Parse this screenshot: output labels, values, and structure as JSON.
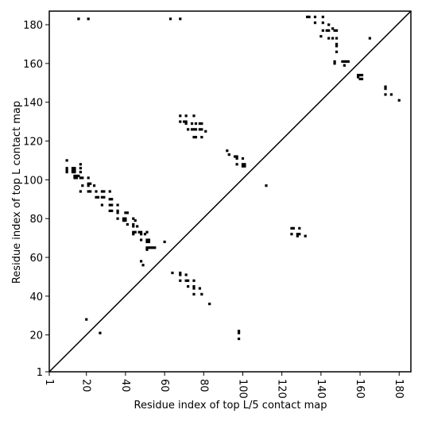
{
  "chart_data": {
    "type": "scatter",
    "title": "",
    "xlabel": "Residue index of top L/5 contact map",
    "ylabel": "Residue index of top L contact map",
    "xlim": [
      1,
      186
    ],
    "ylim": [
      1,
      187
    ],
    "xticks": [
      1,
      20,
      40,
      60,
      80,
      100,
      120,
      140,
      160,
      180
    ],
    "yticks": [
      1,
      20,
      40,
      60,
      80,
      100,
      120,
      140,
      160,
      180
    ],
    "grid": false,
    "diagonal": true,
    "marker_color": "#000000",
    "series": [
      {
        "values": [
          [
            16,
            183
          ],
          [
            21,
            183
          ],
          [
            63,
            183
          ],
          [
            68,
            183
          ],
          [
            133,
            184
          ],
          [
            134,
            184
          ],
          [
            137,
            184
          ],
          [
            141,
            184
          ],
          [
            137,
            181
          ],
          [
            141,
            181
          ],
          [
            144,
            180
          ],
          [
            146,
            178
          ],
          [
            148,
            177
          ],
          [
            141,
            177
          ],
          [
            143,
            177
          ],
          [
            144,
            177
          ],
          [
            147,
            177
          ],
          [
            140,
            174
          ],
          [
            144,
            173
          ],
          [
            146,
            173
          ],
          [
            148,
            173
          ],
          [
            148,
            170
          ],
          [
            148,
            169
          ],
          [
            148,
            166
          ],
          [
            165,
            173
          ],
          [
            147,
            161
          ],
          [
            147,
            160
          ],
          [
            151,
            161
          ],
          [
            152,
            161
          ],
          [
            153,
            161
          ],
          [
            154,
            161
          ],
          [
            152,
            159
          ],
          [
            159,
            154
          ],
          [
            160,
            154
          ],
          [
            161,
            154
          ],
          [
            159,
            153
          ],
          [
            160,
            152
          ],
          [
            161,
            152
          ],
          [
            173,
            148
          ],
          [
            173,
            147
          ],
          [
            173,
            144
          ],
          [
            176,
            144
          ],
          [
            180,
            141
          ],
          [
            68,
            133
          ],
          [
            71,
            133
          ],
          [
            75,
            133
          ],
          [
            68,
            130
          ],
          [
            70,
            130
          ],
          [
            71,
            130
          ],
          [
            71,
            129
          ],
          [
            74,
            129
          ],
          [
            76,
            129
          ],
          [
            78,
            129
          ],
          [
            79,
            129
          ],
          [
            72,
            126
          ],
          [
            74,
            126
          ],
          [
            75,
            126
          ],
          [
            76,
            126
          ],
          [
            78,
            126
          ],
          [
            79,
            126
          ],
          [
            81,
            125
          ],
          [
            75,
            122
          ],
          [
            76,
            122
          ],
          [
            79,
            122
          ],
          [
            92,
            115
          ],
          [
            93,
            113
          ],
          [
            96,
            112
          ],
          [
            97,
            112
          ],
          [
            97,
            111
          ],
          [
            100,
            111
          ],
          [
            97,
            108
          ],
          [
            100,
            108
          ],
          [
            101,
            108
          ],
          [
            100,
            107
          ],
          [
            101,
            107
          ],
          [
            112,
            97
          ],
          [
            10,
            110
          ],
          [
            10,
            106
          ],
          [
            10,
            105
          ],
          [
            10,
            104
          ],
          [
            13,
            106
          ],
          [
            14,
            106
          ],
          [
            13,
            105
          ],
          [
            14,
            105
          ],
          [
            13,
            104
          ],
          [
            14,
            104
          ],
          [
            14,
            102
          ],
          [
            15,
            102
          ],
          [
            16,
            102
          ],
          [
            17,
            108
          ],
          [
            17,
            106
          ],
          [
            17,
            104
          ],
          [
            14,
            101
          ],
          [
            15,
            101
          ],
          [
            17,
            101
          ],
          [
            18,
            101
          ],
          [
            18,
            97
          ],
          [
            21,
            101
          ],
          [
            21,
            98
          ],
          [
            22,
            98
          ],
          [
            21,
            97
          ],
          [
            24,
            97
          ],
          [
            17,
            94
          ],
          [
            21,
            94
          ],
          [
            22,
            94
          ],
          [
            25,
            94
          ],
          [
            28,
            94
          ],
          [
            29,
            94
          ],
          [
            32,
            94
          ],
          [
            25,
            91
          ],
          [
            26,
            91
          ],
          [
            28,
            91
          ],
          [
            29,
            91
          ],
          [
            32,
            90
          ],
          [
            33,
            90
          ],
          [
            28,
            87
          ],
          [
            32,
            87
          ],
          [
            33,
            87
          ],
          [
            36,
            87
          ],
          [
            32,
            84
          ],
          [
            33,
            84
          ],
          [
            36,
            84
          ],
          [
            36,
            83
          ],
          [
            40,
            83
          ],
          [
            41,
            83
          ],
          [
            36,
            80
          ],
          [
            39,
            80
          ],
          [
            40,
            80
          ],
          [
            39,
            79
          ],
          [
            40,
            79
          ],
          [
            44,
            80
          ],
          [
            45,
            79
          ],
          [
            41,
            77
          ],
          [
            44,
            77
          ],
          [
            44,
            76
          ],
          [
            46,
            76
          ],
          [
            44,
            73
          ],
          [
            45,
            73
          ],
          [
            47,
            73
          ],
          [
            48,
            73
          ],
          [
            51,
            73
          ],
          [
            44,
            72
          ],
          [
            48,
            72
          ],
          [
            50,
            72
          ],
          [
            48,
            69
          ],
          [
            51,
            69
          ],
          [
            52,
            69
          ],
          [
            51,
            68
          ],
          [
            52,
            68
          ],
          [
            51,
            65
          ],
          [
            52,
            65
          ],
          [
            53,
            65
          ],
          [
            54,
            65
          ],
          [
            55,
            65
          ],
          [
            51,
            64
          ],
          [
            60,
            68
          ],
          [
            48,
            58
          ],
          [
            49,
            56
          ],
          [
            20,
            28
          ],
          [
            27,
            21
          ],
          [
            64,
            52
          ],
          [
            68,
            52
          ],
          [
            68,
            51
          ],
          [
            71,
            51
          ],
          [
            68,
            48
          ],
          [
            71,
            48
          ],
          [
            72,
            48
          ],
          [
            75,
            48
          ],
          [
            72,
            45
          ],
          [
            75,
            45
          ],
          [
            75,
            44
          ],
          [
            78,
            44
          ],
          [
            75,
            41
          ],
          [
            79,
            41
          ],
          [
            83,
            36
          ],
          [
            125,
            75
          ],
          [
            126,
            75
          ],
          [
            129,
            75
          ],
          [
            125,
            72
          ],
          [
            128,
            72
          ],
          [
            129,
            72
          ],
          [
            132,
            71
          ],
          [
            128,
            71
          ],
          [
            98,
            22
          ],
          [
            98,
            21
          ],
          [
            98,
            18
          ]
        ]
      }
    ]
  }
}
